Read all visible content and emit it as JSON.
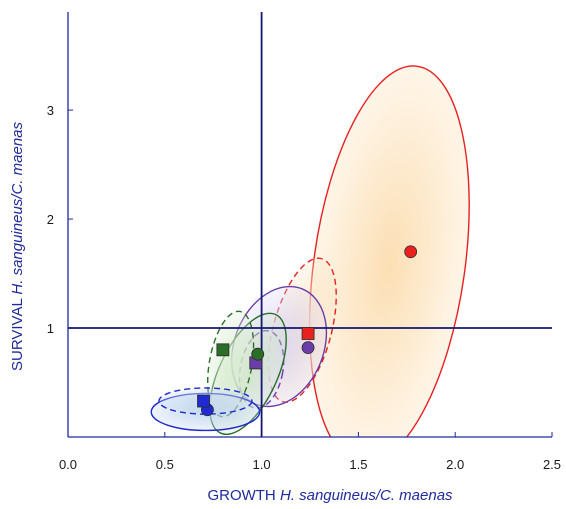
{
  "chart_data": {
    "type": "scatter",
    "xlabel": {
      "prefix": "GROWTH ",
      "italic": "H. sanguineus/C. maenas"
    },
    "ylabel": {
      "prefix": "SURVIVAL ",
      "italic": "H. sanguineus/C. maenas"
    },
    "xlim": [
      0.0,
      2.5
    ],
    "ylim": [
      0.0,
      3.9
    ],
    "xticks": [
      0.0,
      0.5,
      1.0,
      1.5,
      2.0,
      2.5
    ],
    "xtick_labels": [
      "0.0",
      "0.5",
      "1.0",
      "1.5",
      "2.0",
      "2.5"
    ],
    "yticks": [
      1,
      2,
      3
    ],
    "ytick_labels": [
      "1",
      "2",
      "3"
    ],
    "reference_lines": {
      "x": 1.0,
      "y": 1.0
    },
    "axis_color": "#1f2a9e",
    "series": [
      {
        "color": "#e8201e",
        "fill": "#fbd9a6",
        "marker": "circle",
        "line": "solid",
        "x": 1.77,
        "y": 1.7,
        "ellipse": {
          "cx": 1.66,
          "cy": 1.58,
          "rx": 0.39,
          "ry": 1.84,
          "angle": 8
        }
      },
      {
        "color": "#e8201e",
        "fill": "#fce4c4",
        "marker": "square",
        "line": "dashed",
        "x": 1.24,
        "y": 0.95,
        "ellipse": {
          "cx": 1.21,
          "cy": 0.98,
          "rx": 0.15,
          "ry": 0.68,
          "angle": 15
        }
      },
      {
        "color": "#6a3da8",
        "fill": "#d7d3f2",
        "marker": "circle",
        "line": "solid",
        "x": 1.24,
        "y": 0.82,
        "ellipse": {
          "cx": 1.09,
          "cy": 0.83,
          "rx": 0.23,
          "ry": 0.57,
          "angle": 22
        }
      },
      {
        "color": "#6a3da8",
        "fill": "#e2def5",
        "marker": "square",
        "line": "dashed",
        "x": 0.97,
        "y": 0.68,
        "ellipse": {
          "cx": 1.0,
          "cy": 0.62,
          "rx": 0.11,
          "ry": 0.36,
          "angle": 10
        }
      },
      {
        "color": "#2a6e2a",
        "fill": "#cfe6c4",
        "marker": "circle",
        "line": "solid",
        "x": 0.98,
        "y": 0.76,
        "ellipse": {
          "cx": 0.93,
          "cy": 0.58,
          "rx": 0.15,
          "ry": 0.6,
          "angle": 25
        }
      },
      {
        "color": "#2a6e2a",
        "fill": "#d8ecd0",
        "marker": "square",
        "line": "dashed",
        "x": 0.8,
        "y": 0.8,
        "ellipse": {
          "cx": 0.84,
          "cy": 0.67,
          "rx": 0.11,
          "ry": 0.49,
          "angle": 10
        }
      },
      {
        "color": "#1f2ad0",
        "fill": "#bcd2ee",
        "marker": "circle",
        "line": "solid",
        "x": 0.72,
        "y": 0.25,
        "ellipse": {
          "cx": 0.71,
          "cy": 0.23,
          "rx": 0.28,
          "ry": 0.17,
          "angle": 0
        }
      },
      {
        "color": "#1f2ad0",
        "fill": "#c6d9f0",
        "marker": "square",
        "line": "dashed",
        "x": 0.7,
        "y": 0.33,
        "ellipse": {
          "cx": 0.71,
          "cy": 0.33,
          "rx": 0.24,
          "ry": 0.12,
          "angle": 0
        }
      }
    ]
  }
}
